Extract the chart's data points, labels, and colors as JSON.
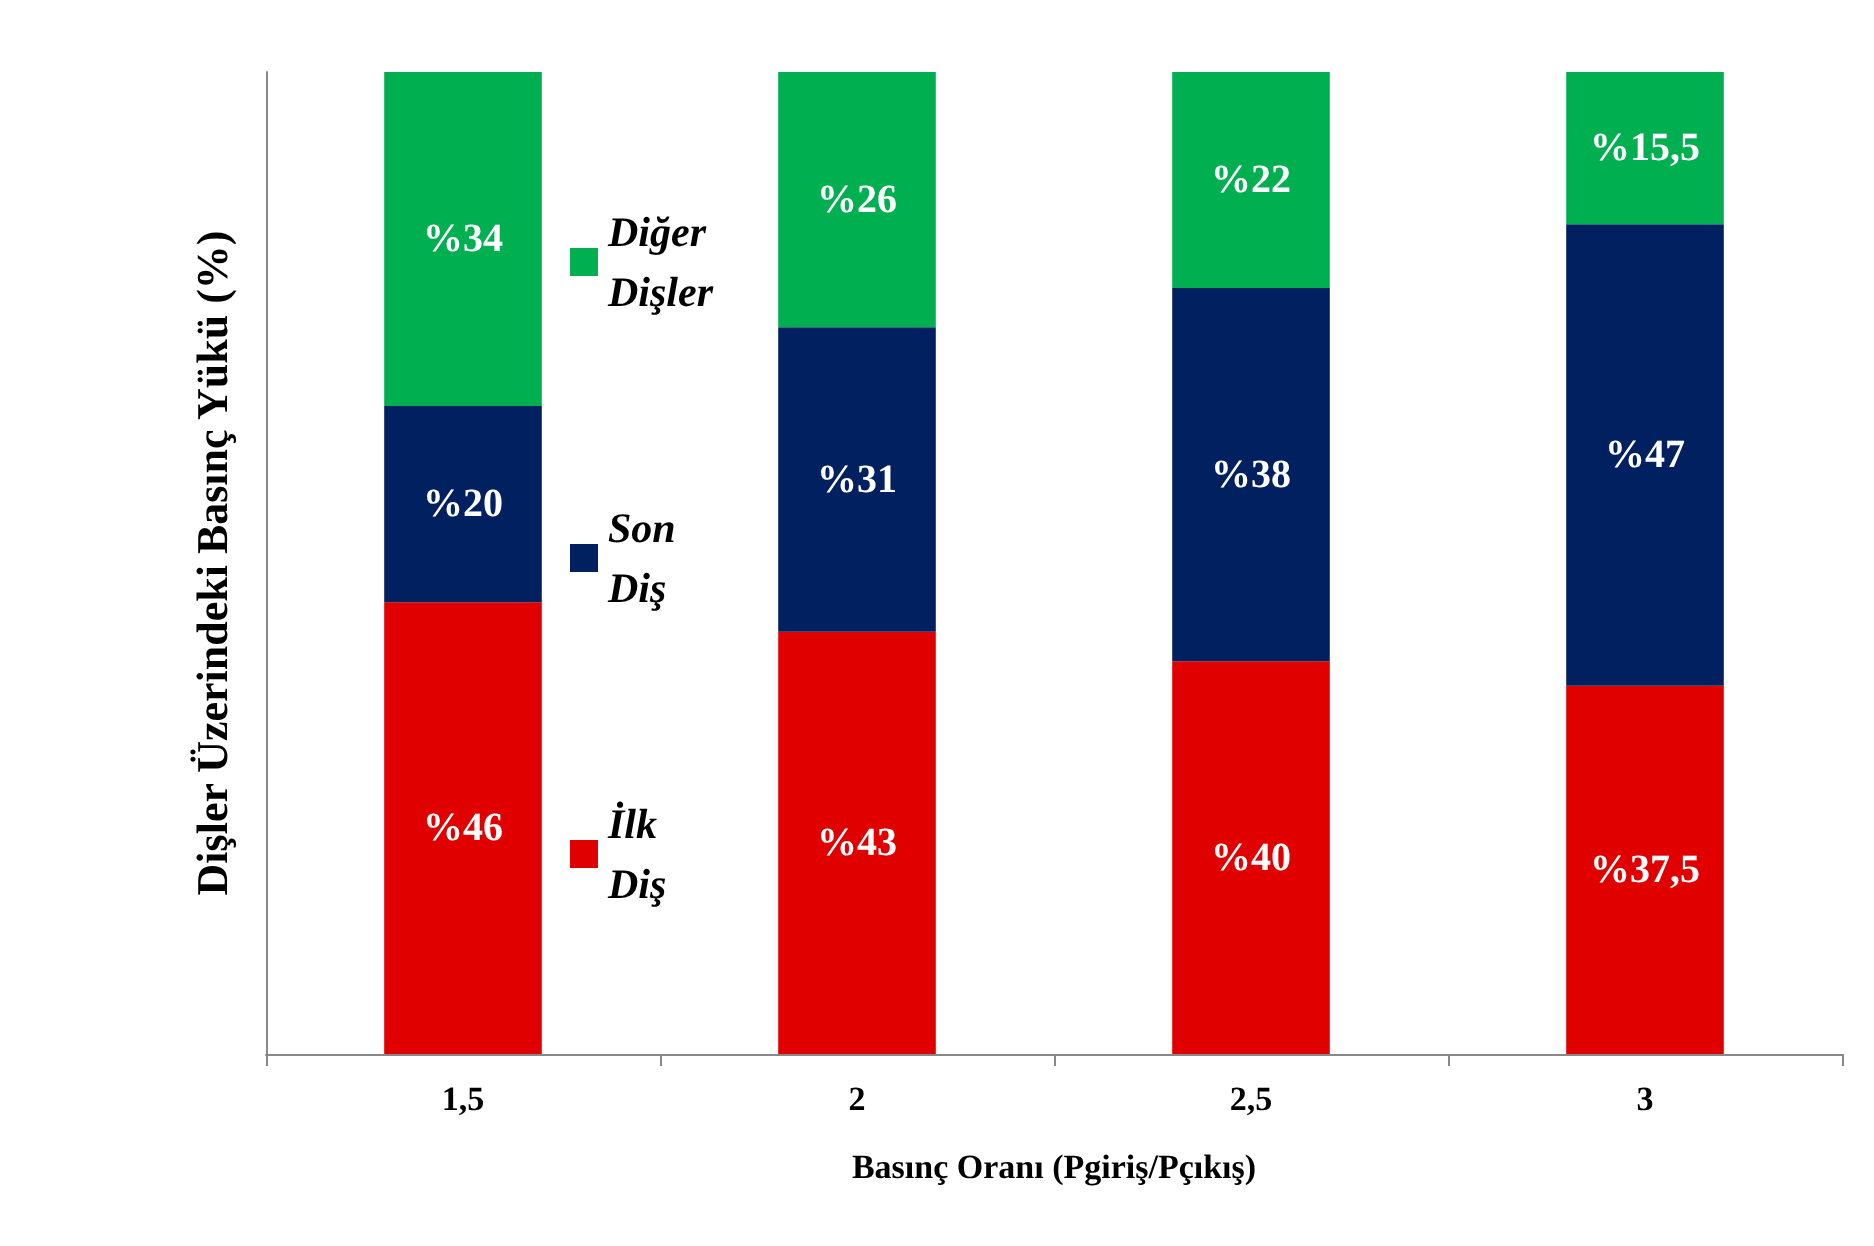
{
  "chart_data": {
    "type": "bar",
    "stacked": true,
    "xlabel": "Basınç Oranı (Pgiriş/Pçıkış)",
    "ylabel": "Dişler Üzerindeki Basınç Yükü (%)",
    "categories": [
      "1,5",
      "2",
      "2,5",
      "3"
    ],
    "ylim": [
      0,
      100
    ],
    "tick_labels": "x",
    "legend": "left",
    "series": [
      {
        "name": "İlk Diş",
        "color": "#e00000",
        "values": [
          46,
          43,
          40,
          37.5
        ],
        "value_labels": [
          "%46",
          "%43",
          "%40",
          "%37,5"
        ]
      },
      {
        "name": "Son Diş",
        "color": "#002060",
        "values": [
          20,
          31,
          38,
          47
        ],
        "value_labels": [
          "%20",
          "%31",
          "%38",
          "%47"
        ]
      },
      {
        "name": "Diğer Dişler",
        "color": "#00b050",
        "values": [
          34,
          26,
          22,
          15.5
        ],
        "value_labels": [
          "%34",
          "%26",
          "%22",
          "%15,5"
        ]
      }
    ]
  }
}
